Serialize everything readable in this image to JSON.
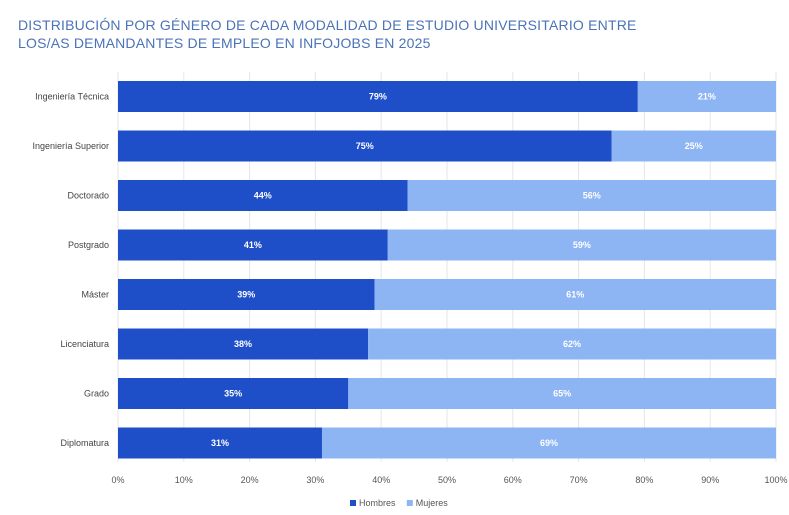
{
  "title_line1": "DISTRIBUCIÓN POR GÉNERO DE CADA MODALIDAD DE ESTUDIO UNIVERSITARIO ENTRE",
  "title_line2": "LOS/AS DEMANDANTES DE EMPLEO EN INFOJOBS EN 2025",
  "colors": {
    "hombres": "#1f4fc8",
    "mujeres": "#8db4f3",
    "title": "#4a73b8",
    "grid": "#e6e6e6"
  },
  "chart_data": {
    "type": "bar",
    "orientation": "horizontal",
    "stacked": true,
    "categories": [
      "Ingeniería Técnica",
      "Ingeniería Superior",
      "Doctorado",
      "Postgrado",
      "Máster",
      "Licenciatura",
      "Grado",
      "Diplomatura"
    ],
    "series": [
      {
        "name": "Hombres",
        "values": [
          79,
          75,
          44,
          41,
          39,
          38,
          35,
          31
        ],
        "labels": [
          "79%",
          "75%",
          "44%",
          "41%",
          "39%",
          "38%",
          "35%",
          "31%"
        ]
      },
      {
        "name": "Mujeres",
        "values": [
          21,
          25,
          56,
          59,
          61,
          62,
          65,
          69
        ],
        "labels": [
          "21%",
          "25%",
          "56%",
          "59%",
          "61%",
          "62%",
          "65%",
          "69%"
        ]
      }
    ],
    "xlim": [
      0,
      100
    ],
    "x_ticks": [
      "0%",
      "10%",
      "20%",
      "30%",
      "40%",
      "50%",
      "60%",
      "70%",
      "80%",
      "90%",
      "100%"
    ],
    "grid": true,
    "legend_position": "bottom-center"
  }
}
